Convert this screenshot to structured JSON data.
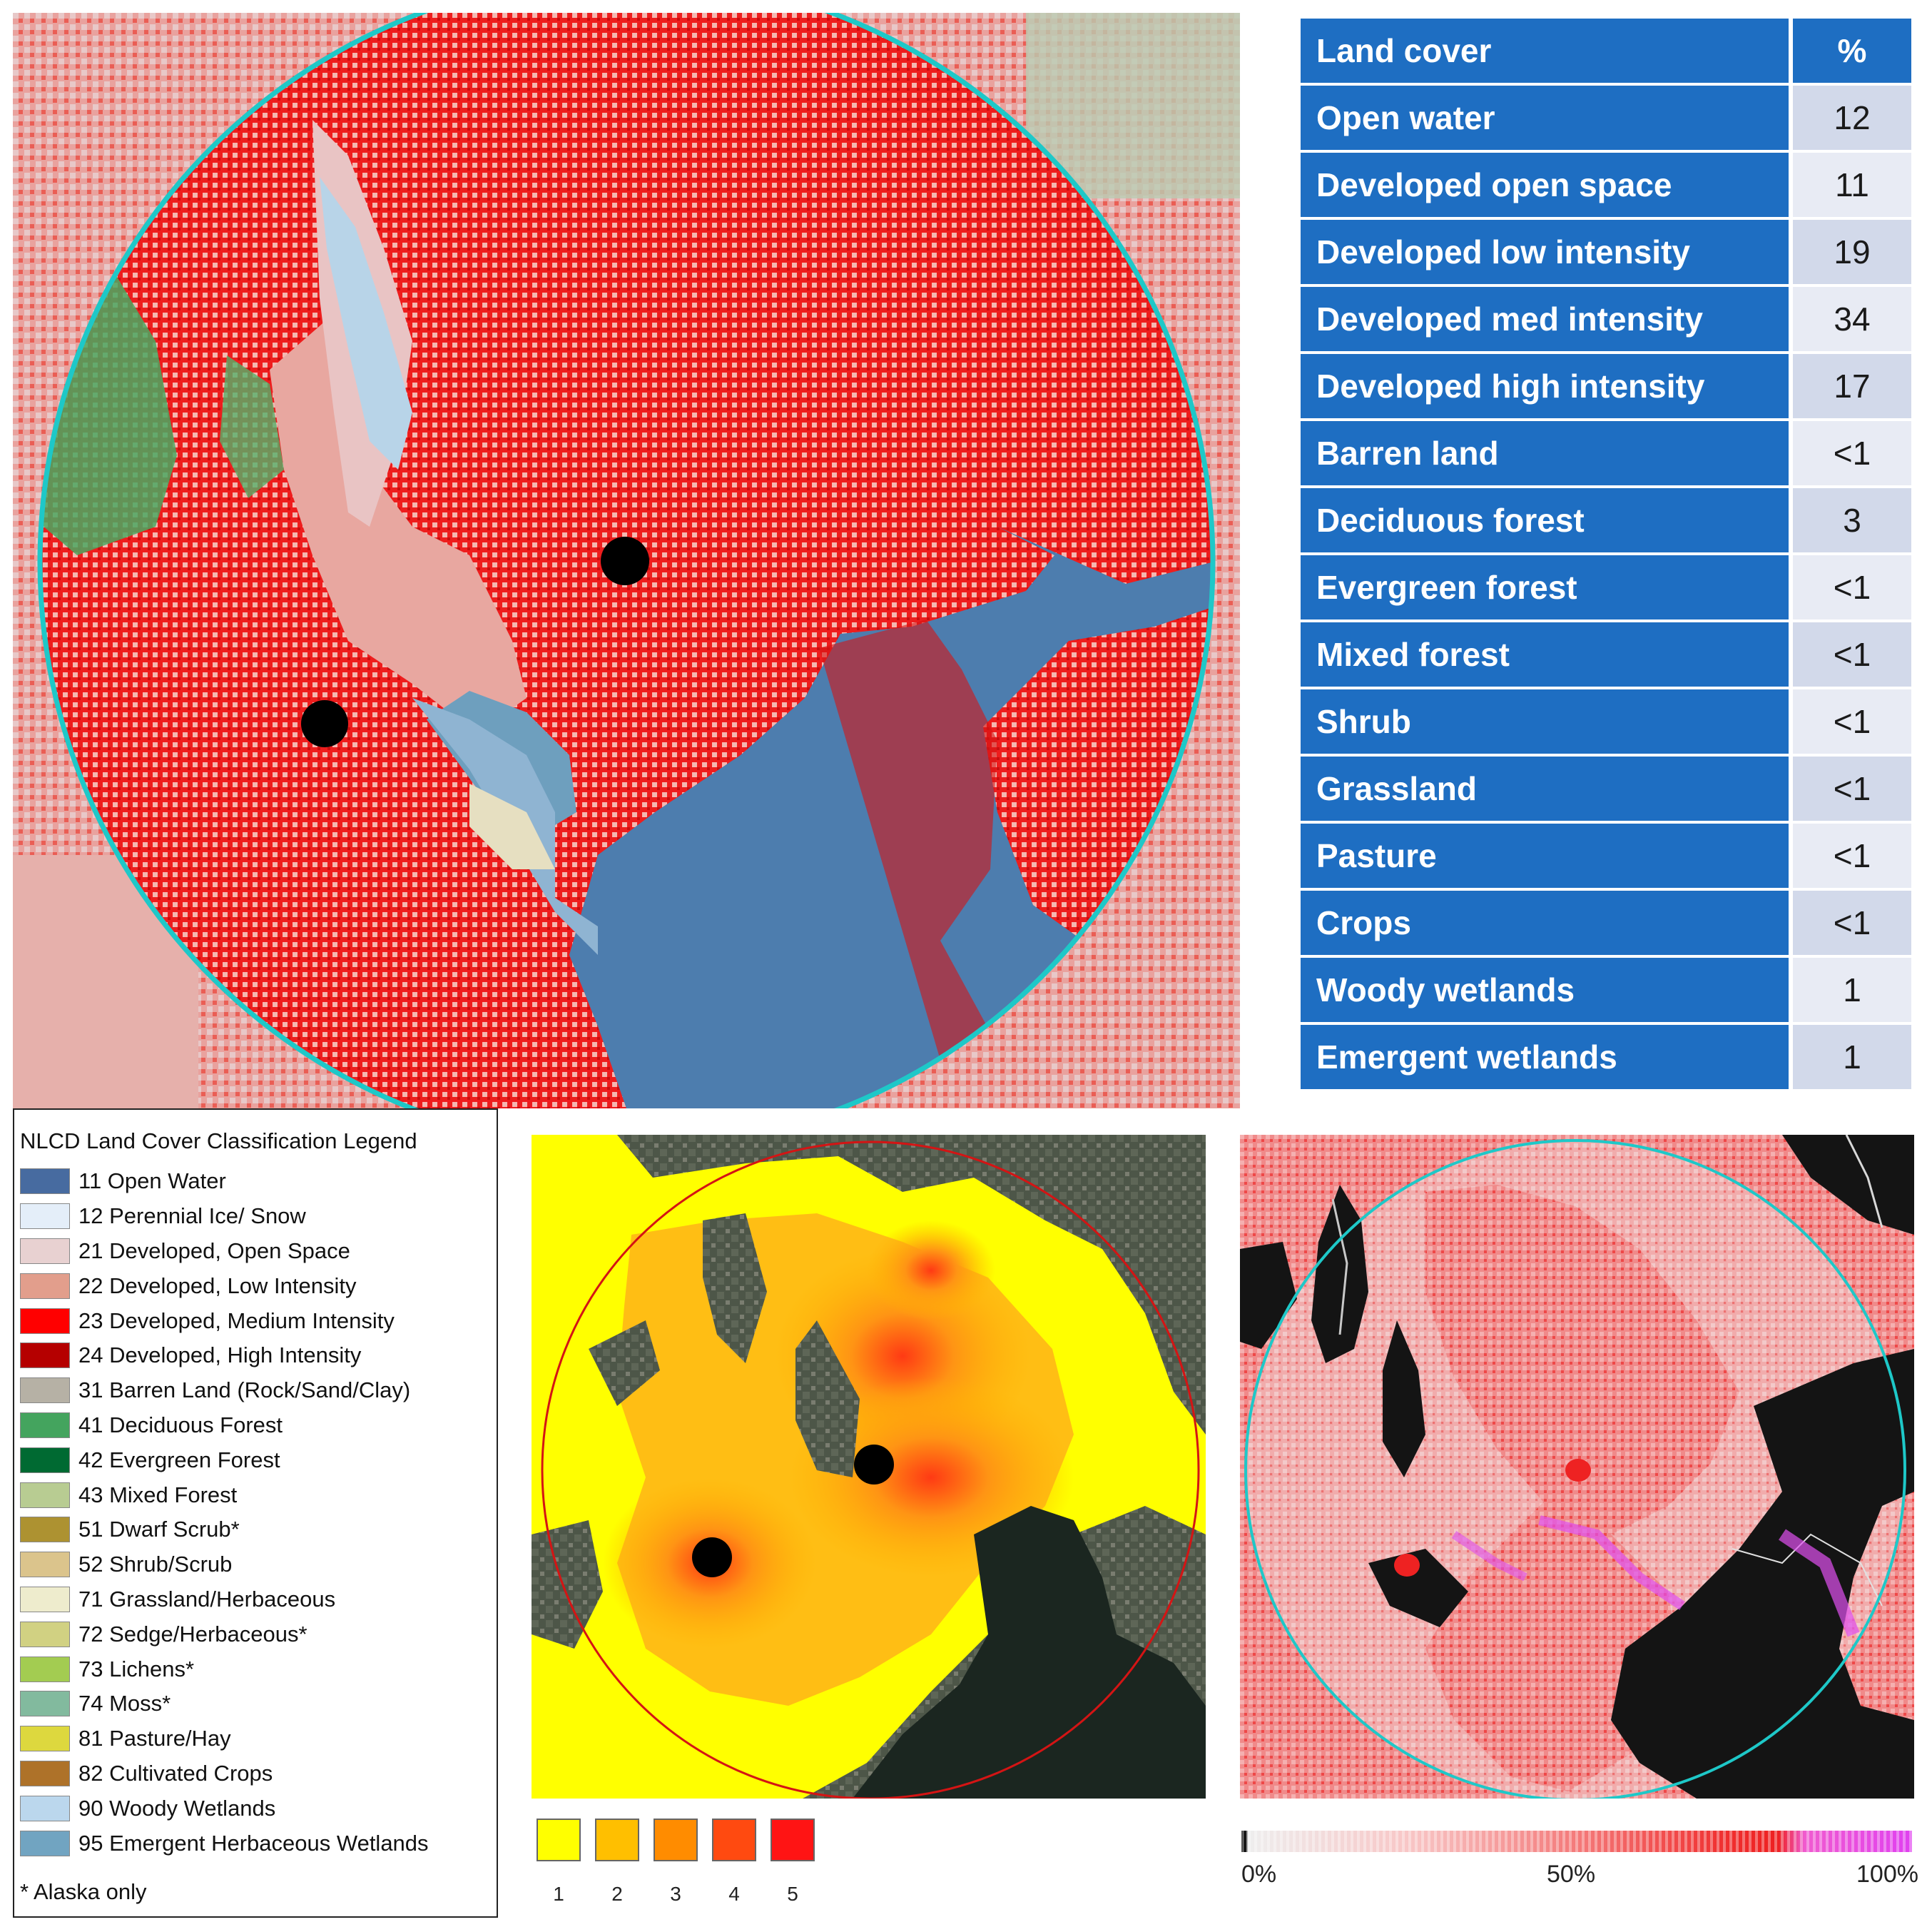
{
  "table": {
    "header": {
      "label": "Land cover",
      "pct": "%"
    },
    "rows": [
      {
        "label": "Open water",
        "pct": "12"
      },
      {
        "label": "Developed open space",
        "pct": "11"
      },
      {
        "label": "Developed low intensity",
        "pct": "19"
      },
      {
        "label": "Developed med intensity",
        "pct": "34"
      },
      {
        "label": "Developed high intensity",
        "pct": "17"
      },
      {
        "label": "Barren land",
        "pct": "<1"
      },
      {
        "label": "Deciduous forest",
        "pct": "3"
      },
      {
        "label": "Evergreen forest",
        "pct": "<1"
      },
      {
        "label": "Mixed forest",
        "pct": "<1"
      },
      {
        "label": "Shrub",
        "pct": "<1"
      },
      {
        "label": "Grassland",
        "pct": "<1"
      },
      {
        "label": "Pasture",
        "pct": "<1"
      },
      {
        "label": "Crops",
        "pct": "<1"
      },
      {
        "label": "Woody wetlands",
        "pct": "1"
      },
      {
        "label": "Emergent wetlands",
        "pct": "1"
      }
    ]
  },
  "legend": {
    "title": "NLCD Land Cover Classification Legend",
    "items": [
      {
        "label": "11 Open Water",
        "color": "#476ba0"
      },
      {
        "label": "12 Perennial Ice/ Snow",
        "color": "#e4eef9"
      },
      {
        "label": "21 Developed, Open Space",
        "color": "#e8d1d1"
      },
      {
        "label": "22 Developed, Low Intensity",
        "color": "#e29e8c"
      },
      {
        "label": "23 Developed, Medium Intensity",
        "color": "#ff0000"
      },
      {
        "label": "24 Developed, High Intensity",
        "color": "#b50000"
      },
      {
        "label": "31 Barren Land (Rock/Sand/Clay)",
        "color": "#b6b1a5"
      },
      {
        "label": "41 Deciduous Forest",
        "color": "#44a45e"
      },
      {
        "label": "42 Evergreen Forest",
        "color": "#006a32"
      },
      {
        "label": "43 Mixed Forest",
        "color": "#b8cc92"
      },
      {
        "label": "51 Dwarf Scrub*",
        "color": "#ad9231"
      },
      {
        "label": "52 Shrub/Scrub",
        "color": "#dbc48c"
      },
      {
        "label": "71 Grassland/Herbaceous",
        "color": "#eeeccd"
      },
      {
        "label": "72 Sedge/Herbaceous*",
        "color": "#d1d182"
      },
      {
        "label": "73 Lichens*",
        "color": "#a3cc51"
      },
      {
        "label": "74 Moss*",
        "color": "#82ba9e"
      },
      {
        "label": "81 Pasture/Hay",
        "color": "#ddd83e"
      },
      {
        "label": "82 Cultivated Crops",
        "color": "#ae7229"
      },
      {
        "label": "90 Woody Wetlands",
        "color": "#bbd7ed"
      },
      {
        "label": "95 Emergent Herbaceous Wetlands",
        "color": "#71a4c1"
      }
    ],
    "footnote": "* Alaska only"
  },
  "heat_scale": {
    "items": [
      {
        "label": "1",
        "color": "#ffff00"
      },
      {
        "label": "2",
        "color": "#ffbf00"
      },
      {
        "label": "3",
        "color": "#ff8c00"
      },
      {
        "label": "4",
        "color": "#ff4a10"
      },
      {
        "label": "5",
        "color": "#ff1414"
      }
    ]
  },
  "imperv_scale": {
    "labels": {
      "min": "0%",
      "mid": "50%",
      "max": "100%"
    }
  },
  "colors": {
    "buffer_circle": "#1ec8c8",
    "heat_circle": "#d41414",
    "site_marker": "#000000",
    "site_marker_imperv": "#ee2222"
  }
}
